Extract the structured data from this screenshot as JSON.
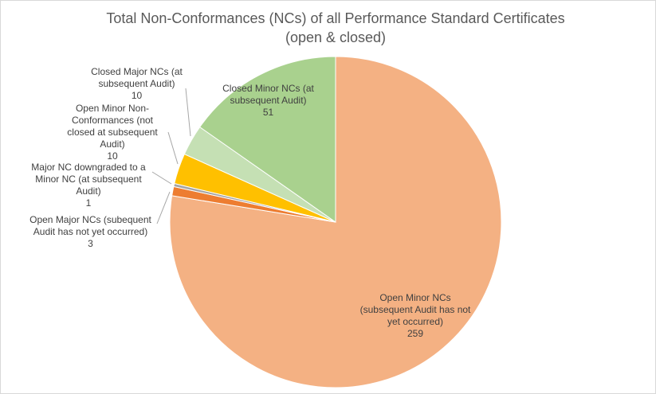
{
  "chart_data": {
    "type": "pie",
    "title": "Total Non-Conformances (NCs) of all Performance Standard Certificates (open & closed)",
    "categories": [
      "Open Minor NCs (subsequent Audit has not yet occurred)",
      "Open Major NCs (subequent Audit has not yet occurred)",
      "Major NC downgraded to a Minor NC (at subsequent Audit)",
      "Open Minor Non-Conformances (not closed at subsequent Audit)",
      "Closed Major NCs (at subsequent Audit)",
      "Closed Minor NCs (at subsequent Audit)"
    ],
    "values": [
      259,
      3,
      1,
      10,
      10,
      51
    ],
    "colors": [
      "#F4B183",
      "#ED7D31",
      "#A5A5A5",
      "#FFC000",
      "#C5E0B4",
      "#A9D18E"
    ]
  }
}
